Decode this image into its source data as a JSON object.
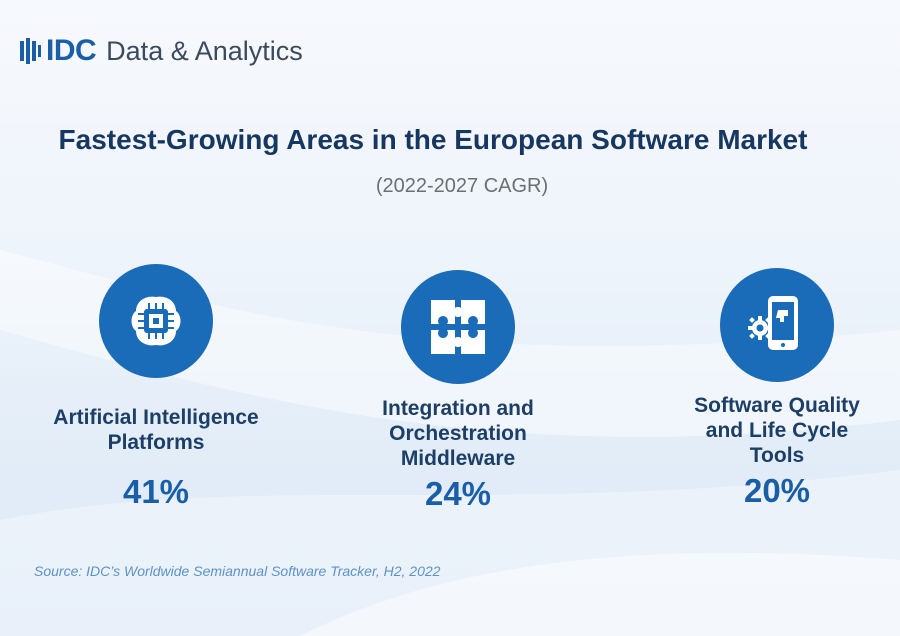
{
  "header": {
    "logo_brand": "IDC",
    "logo_text": "Data & Analytics"
  },
  "title": "Fastest-Growing Areas in the European Software Market",
  "subtitle": "(2022-2027 CAGR)",
  "cards": [
    {
      "label_lines": [
        "Artificial Intelligence",
        "Platforms"
      ],
      "value": "41%",
      "icon": "ai-chip-brain-icon"
    },
    {
      "label_lines": [
        "Integration and",
        "Orchestration",
        "Middleware"
      ],
      "value": "24%",
      "icon": "puzzle-icon"
    },
    {
      "label_lines": [
        "Software Quality",
        "and Life Cycle",
        "Tools"
      ],
      "value": "20%",
      "icon": "mobile-gear-icon"
    }
  ],
  "source": "Source: IDC’s Worldwide Semiannual Software Tracker, H2, 2022",
  "colors": {
    "primary_blue": "#1a6bb8",
    "title_navy": "#16375f",
    "source_blue": "#5d93c6"
  }
}
